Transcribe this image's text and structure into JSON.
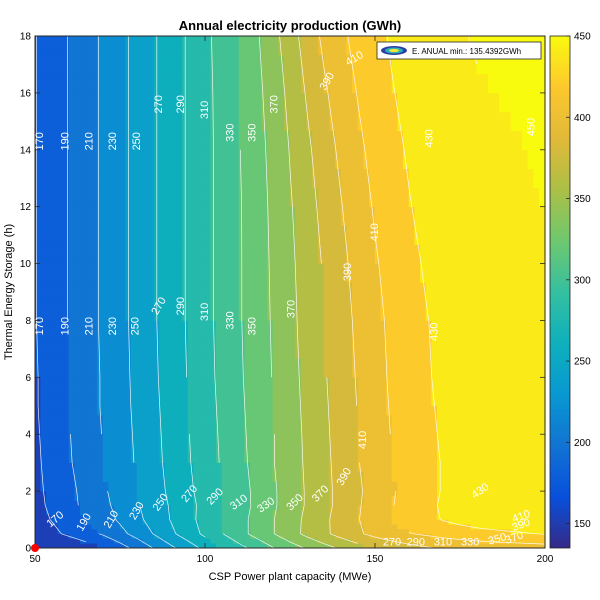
{
  "chart_data": {
    "type": "filled-contour",
    "title": "Annual electricity production  (GWh)",
    "xlabel": "CSP Power plant capacity (MWe)",
    "ylabel": "Thermal Energy Storage (h)",
    "xlim": [
      50,
      200
    ],
    "ylim": [
      0,
      18
    ],
    "x_ticks": [
      50,
      100,
      150,
      200
    ],
    "y_ticks": [
      0,
      2,
      4,
      6,
      8,
      10,
      12,
      14,
      16,
      18
    ],
    "colorbar": {
      "min": 135,
      "max": 450,
      "ticks": [
        150,
        200,
        250,
        300,
        350,
        400,
        450
      ],
      "colormap": "parula"
    },
    "legend": {
      "label": "E. ANUAL min.: 135.4392GWh",
      "placement": "top-right"
    },
    "min_point": {
      "x": 50,
      "y": 0,
      "color": "#ff0000"
    },
    "contour_levels": [
      170,
      190,
      210,
      230,
      250,
      270,
      290,
      310,
      330,
      350,
      370,
      390,
      410,
      430,
      450
    ],
    "model_grid": {
      "x": [
        50,
        55,
        60,
        65,
        70,
        75,
        80,
        85,
        90,
        95,
        100,
        105,
        110,
        115,
        120,
        125,
        130,
        135,
        140,
        145,
        150,
        155,
        160,
        165,
        170,
        175,
        180,
        185,
        190,
        195,
        200
      ],
      "y": [
        0,
        0.5,
        1,
        1.5,
        2,
        3,
        4,
        5,
        6,
        8,
        10,
        12,
        14,
        16,
        18
      ],
      "z": [
        [
          135,
          143,
          151,
          160,
          170,
          182,
          196,
          211,
          226,
          240,
          255,
          270,
          284,
          296,
          309,
          321,
          332,
          343,
          353,
          362,
          370,
          377,
          383,
          388,
          392,
          395,
          397,
          399,
          400,
          401,
          402
        ],
        [
          157,
          165,
          174,
          183,
          192,
          204,
          217,
          231,
          246,
          260,
          274,
          289,
          303,
          316,
          329,
          342,
          355,
          366,
          377,
          387,
          396,
          403,
          409,
          413,
          417,
          420,
          423,
          425,
          427,
          429,
          431
        ],
        [
          162,
          171,
          180,
          190,
          201,
          213,
          225,
          238,
          251,
          264,
          277,
          290,
          303,
          316,
          329,
          342,
          354,
          366,
          378,
          389,
          400,
          410,
          418,
          425,
          431,
          436,
          440,
          443,
          445,
          447,
          448
        ],
        [
          164,
          174,
          184,
          195,
          205,
          216,
          228,
          240,
          252,
          264,
          276,
          289,
          301,
          314,
          327,
          340,
          352,
          364,
          376,
          388,
          399,
          409,
          418,
          426,
          432,
          437,
          441,
          444,
          446,
          448,
          449
        ],
        [
          165,
          175,
          185,
          196,
          207,
          218,
          230,
          242,
          254,
          266,
          278,
          290,
          302,
          314,
          327,
          340,
          352,
          364,
          376,
          387,
          398,
          408,
          417,
          425,
          431,
          436,
          440,
          443,
          445,
          447,
          449
        ],
        [
          166,
          177,
          188,
          199,
          210,
          221,
          232,
          244,
          256,
          268,
          280,
          292,
          304,
          316,
          329,
          341,
          353,
          365,
          377,
          389,
          400,
          410,
          418,
          425,
          431,
          436,
          440,
          443,
          445,
          447,
          449
        ],
        [
          167,
          178,
          189,
          200,
          211,
          222,
          233,
          245,
          257,
          269,
          281,
          293,
          305,
          317,
          329,
          341,
          354,
          366,
          378,
          390,
          401,
          411,
          419,
          426,
          432,
          437,
          441,
          444,
          446,
          448,
          449
        ],
        [
          168,
          179,
          190,
          201,
          212,
          223,
          234,
          246,
          258,
          270,
          282,
          294,
          306,
          318,
          330,
          342,
          355,
          367,
          379,
          391,
          402,
          412,
          420,
          427,
          433,
          438,
          442,
          445,
          447,
          448,
          449
        ],
        [
          168,
          179,
          190,
          201,
          212,
          223,
          235,
          247,
          259,
          271,
          283,
          295,
          307,
          319,
          331,
          343,
          356,
          368,
          380,
          392,
          403,
          413,
          421,
          428,
          434,
          439,
          443,
          445,
          447,
          448,
          449
        ],
        [
          169,
          180,
          191,
          202,
          213,
          224,
          236,
          248,
          260,
          272,
          284,
          296,
          308,
          320,
          332,
          345,
          357,
          370,
          382,
          394,
          405,
          414,
          422,
          429,
          435,
          440,
          444,
          446,
          447,
          448,
          449
        ],
        [
          169,
          180,
          191,
          202,
          213,
          224,
          236,
          248,
          260,
          272,
          284,
          296,
          308,
          320,
          333,
          346,
          359,
          372,
          385,
          397,
          408,
          417,
          425,
          432,
          437,
          441,
          444,
          446,
          448,
          449,
          450
        ],
        [
          169,
          180,
          191,
          202,
          213,
          224,
          236,
          248,
          260,
          272,
          284,
          296,
          308,
          321,
          334,
          348,
          362,
          376,
          389,
          401,
          412,
          421,
          429,
          435,
          440,
          443,
          445,
          447,
          448,
          449,
          450
        ],
        [
          169,
          180,
          191,
          202,
          213,
          224,
          236,
          248,
          260,
          272,
          284,
          296,
          309,
          322,
          336,
          351,
          366,
          381,
          394,
          406,
          416,
          425,
          432,
          438,
          442,
          445,
          447,
          448,
          449,
          450,
          451
        ],
        [
          169,
          180,
          191,
          202,
          213,
          224,
          236,
          248,
          260,
          272,
          284,
          297,
          310,
          324,
          339,
          355,
          372,
          387,
          400,
          411,
          421,
          429,
          435,
          440,
          444,
          447,
          449,
          450,
          451,
          452,
          453
        ],
        [
          169,
          180,
          191,
          202,
          213,
          224,
          236,
          248,
          260,
          272,
          285,
          298,
          312,
          327,
          343,
          361,
          379,
          394,
          406,
          416,
          425,
          432,
          438,
          442,
          446,
          449,
          451,
          452,
          453,
          454,
          455
        ]
      ]
    },
    "contour_labels": [
      {
        "text": "170",
        "x": 51.5,
        "y": 14.3,
        "angle": -90
      },
      {
        "text": "190",
        "x": 59,
        "y": 14.3,
        "angle": -90
      },
      {
        "text": "210",
        "x": 66,
        "y": 14.3,
        "angle": -90
      },
      {
        "text": "230",
        "x": 73,
        "y": 14.3,
        "angle": -90
      },
      {
        "text": "250",
        "x": 80,
        "y": 14.3,
        "angle": -90
      },
      {
        "text": "270",
        "x": 86.5,
        "y": 15.6,
        "angle": -90
      },
      {
        "text": "290",
        "x": 93,
        "y": 15.6,
        "angle": -90
      },
      {
        "text": "310",
        "x": 100,
        "y": 15.4,
        "angle": -90
      },
      {
        "text": "330",
        "x": 107.5,
        "y": 14.6,
        "angle": -90
      },
      {
        "text": "350",
        "x": 114,
        "y": 14.6,
        "angle": -90
      },
      {
        "text": "370",
        "x": 120.5,
        "y": 15.6,
        "angle": -90
      },
      {
        "text": "390",
        "x": 136,
        "y": 16.4,
        "angle": -60
      },
      {
        "text": "410",
        "x": 144,
        "y": 17.2,
        "angle": -30
      },
      {
        "text": "430",
        "x": 166,
        "y": 14.4,
        "angle": -90
      },
      {
        "text": "450",
        "x": 196,
        "y": 14.8,
        "angle": -90
      },
      {
        "text": "170",
        "x": 51.5,
        "y": 7.8,
        "angle": -90
      },
      {
        "text": "190",
        "x": 59,
        "y": 7.8,
        "angle": -90
      },
      {
        "text": "210",
        "x": 66,
        "y": 7.8,
        "angle": -90
      },
      {
        "text": "230",
        "x": 73,
        "y": 7.8,
        "angle": -90
      },
      {
        "text": "250",
        "x": 79.5,
        "y": 7.8,
        "angle": -90
      },
      {
        "text": "270",
        "x": 86.5,
        "y": 8.5,
        "angle": -60
      },
      {
        "text": "290",
        "x": 93,
        "y": 8.5,
        "angle": -90
      },
      {
        "text": "310",
        "x": 100,
        "y": 8.3,
        "angle": -90
      },
      {
        "text": "330",
        "x": 107.5,
        "y": 8.0,
        "angle": -90
      },
      {
        "text": "350",
        "x": 114,
        "y": 7.8,
        "angle": -90
      },
      {
        "text": "370",
        "x": 125.5,
        "y": 8.4,
        "angle": -90
      },
      {
        "text": "390",
        "x": 142,
        "y": 9.7,
        "angle": -90
      },
      {
        "text": "410",
        "x": 150,
        "y": 11.1,
        "angle": -90
      },
      {
        "text": "430",
        "x": 167.5,
        "y": 7.6,
        "angle": -90
      },
      {
        "text": "410",
        "x": 146.5,
        "y": 3.8,
        "angle": -90
      },
      {
        "text": "390",
        "x": 141,
        "y": 2.5,
        "angle": -60
      },
      {
        "text": "370",
        "x": 134,
        "y": 1.9,
        "angle": -45
      },
      {
        "text": "350",
        "x": 126.5,
        "y": 1.6,
        "angle": -45
      },
      {
        "text": "330",
        "x": 118,
        "y": 1.5,
        "angle": -35
      },
      {
        "text": "310",
        "x": 110,
        "y": 1.6,
        "angle": -35
      },
      {
        "text": "290",
        "x": 103,
        "y": 1.8,
        "angle": -45
      },
      {
        "text": "270",
        "x": 95.5,
        "y": 1.9,
        "angle": -50
      },
      {
        "text": "250",
        "x": 87,
        "y": 1.6,
        "angle": -55
      },
      {
        "text": "230",
        "x": 80,
        "y": 1.3,
        "angle": -60
      },
      {
        "text": "210",
        "x": 72.5,
        "y": 1.0,
        "angle": -60
      },
      {
        "text": "190",
        "x": 64.5,
        "y": 0.9,
        "angle": -60
      },
      {
        "text": "170",
        "x": 56,
        "y": 1.0,
        "angle": -40
      },
      {
        "text": "430",
        "x": 181,
        "y": 2.0,
        "angle": -35
      },
      {
        "text": "410",
        "x": 193,
        "y": 1.1,
        "angle": -20
      },
      {
        "text": "390",
        "x": 193,
        "y": 0.8,
        "angle": -20
      },
      {
        "text": "370",
        "x": 191,
        "y": 0.35,
        "angle": -20
      },
      {
        "text": "350",
        "x": 186,
        "y": 0.3,
        "angle": -15
      },
      {
        "text": "330",
        "x": 178,
        "y": 0.2,
        "angle": 0
      },
      {
        "text": "310",
        "x": 170,
        "y": 0.2,
        "angle": 0
      },
      {
        "text": "290",
        "x": 162,
        "y": 0.2,
        "angle": 0
      },
      {
        "text": "270",
        "x": 155,
        "y": 0.2,
        "angle": 0
      }
    ]
  }
}
